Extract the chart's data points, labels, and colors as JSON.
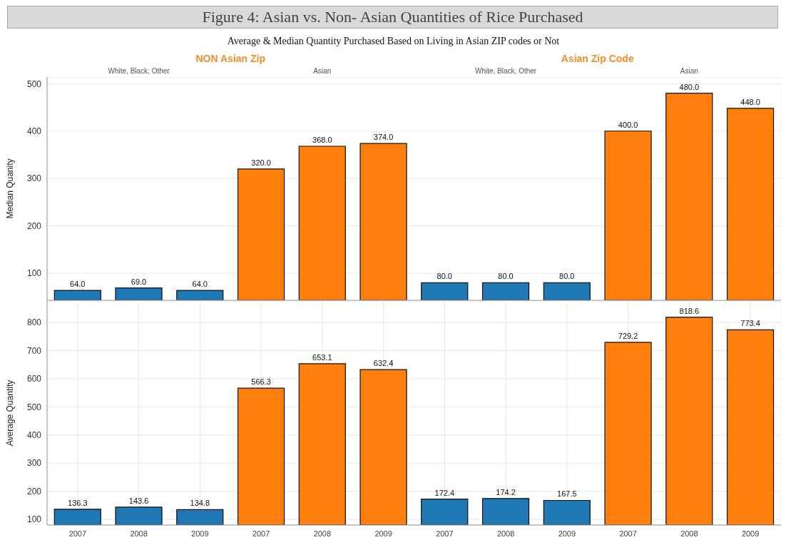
{
  "chart_data": [
    {
      "type": "bar",
      "title": "Figure 4: Asian vs. Non- Asian Quantities of Rice Purchased",
      "subtitle": "Average & Median Quantity Purchased Based on Living in Asian ZIP codes or Not",
      "annotations": [
        "NON Asian Zip",
        "Asian Zip Code",
        "White, Black, Other",
        "Asian",
        "White, Black, Other",
        "Asian"
      ],
      "ylabel": "Median Quanity",
      "categories": [
        "2007",
        "2008",
        "2009",
        "2007",
        "2008",
        "2009",
        "2007",
        "2008",
        "2009",
        "2007",
        "2008",
        "2009"
      ],
      "values": [
        64,
        69,
        64,
        320,
        368,
        374,
        80,
        80,
        80,
        400,
        480,
        448
      ],
      "value_labels": [
        "64.0",
        "69.0",
        "64.0",
        "320.0",
        "368.0",
        "374.0",
        "80.0",
        "80.0",
        "80.0",
        "400.0",
        "480.0",
        "448.0"
      ],
      "colors": [
        "#1f77b4",
        "#1f77b4",
        "#1f77b4",
        "#ff7f0e",
        "#ff7f0e",
        "#ff7f0e",
        "#1f77b4",
        "#1f77b4",
        "#1f77b4",
        "#ff7f0e",
        "#ff7f0e",
        "#ff7f0e"
      ],
      "ylim": [
        43,
        514
      ],
      "yticks": [
        100,
        200,
        300,
        400,
        500
      ],
      "grid": true,
      "tick_labels": "y"
    },
    {
      "type": "bar",
      "ylabel": "Average Quantity",
      "categories": [
        "2007",
        "2008",
        "2009",
        "2007",
        "2008",
        "2009",
        "2007",
        "2008",
        "2009",
        "2007",
        "2008",
        "2009"
      ],
      "values": [
        136.3,
        143.6,
        134.8,
        566.3,
        653.1,
        632.4,
        172.4,
        174.2,
        167.5,
        729.2,
        818.6,
        773.4
      ],
      "value_labels": [
        "136.3",
        "143.6",
        "134.8",
        "566.3",
        "653.1",
        "632.4",
        "172.4",
        "174.2",
        "167.5",
        "729.2",
        "818.6",
        "773.4"
      ],
      "colors": [
        "#1f77b4",
        "#1f77b4",
        "#1f77b4",
        "#ff7f0e",
        "#ff7f0e",
        "#ff7f0e",
        "#1f77b4",
        "#1f77b4",
        "#1f77b4",
        "#ff7f0e",
        "#ff7f0e",
        "#ff7f0e"
      ],
      "ylim": [
        80,
        876
      ],
      "yticks": [
        100,
        200,
        300,
        400,
        500,
        600,
        700,
        800
      ],
      "grid": true
    }
  ]
}
